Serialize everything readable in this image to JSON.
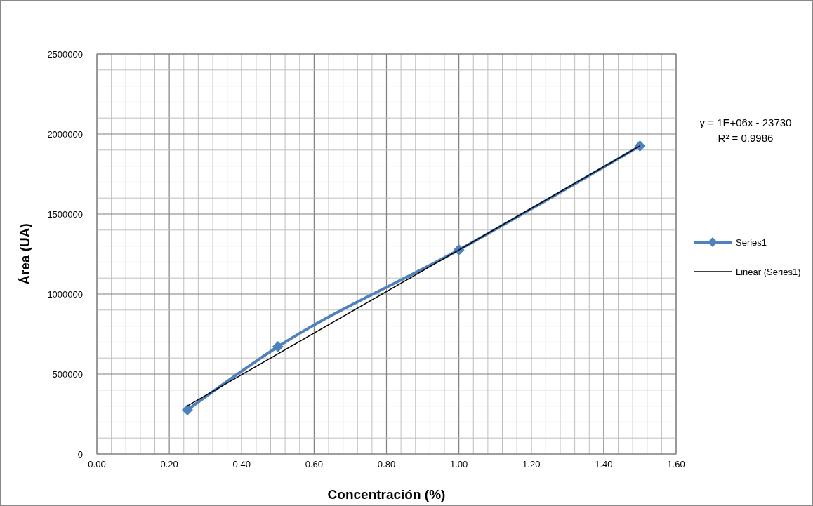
{
  "chart_data": {
    "type": "line",
    "xlabel": "Concentración (%)",
    "ylabel": "Área (UA)",
    "xlim": [
      0,
      1.6
    ],
    "ylim": [
      0,
      2500000
    ],
    "xticks": [
      {
        "value": 0,
        "label": "0.00"
      },
      {
        "value": 0.04,
        "label": null
      },
      {
        "value": 0.08,
        "label": null
      },
      {
        "value": 0.12,
        "label": null
      },
      {
        "value": 0.16,
        "label": null
      },
      {
        "value": 0.2,
        "label": "0.20"
      },
      {
        "value": 0.24,
        "label": null
      },
      {
        "value": 0.28,
        "label": null
      },
      {
        "value": 0.32,
        "label": null
      },
      {
        "value": 0.36,
        "label": null
      },
      {
        "value": 0.4,
        "label": "0.40"
      },
      {
        "value": 0.44,
        "label": null
      },
      {
        "value": 0.48,
        "label": null
      },
      {
        "value": 0.52,
        "label": null
      },
      {
        "value": 0.56,
        "label": null
      },
      {
        "value": 0.6,
        "label": "0.60"
      },
      {
        "value": 0.64,
        "label": null
      },
      {
        "value": 0.68,
        "label": null
      },
      {
        "value": 0.72,
        "label": null
      },
      {
        "value": 0.76,
        "label": null
      },
      {
        "value": 0.8,
        "label": "0.80"
      },
      {
        "value": 0.84,
        "label": null
      },
      {
        "value": 0.88,
        "label": null
      },
      {
        "value": 0.92,
        "label": null
      },
      {
        "value": 0.96,
        "label": null
      },
      {
        "value": 1.0,
        "label": "1.00"
      },
      {
        "value": 1.04,
        "label": null
      },
      {
        "value": 1.08,
        "label": null
      },
      {
        "value": 1.12,
        "label": null
      },
      {
        "value": 1.16,
        "label": null
      },
      {
        "value": 1.2,
        "label": "1.20"
      },
      {
        "value": 1.24,
        "label": null
      },
      {
        "value": 1.28,
        "label": null
      },
      {
        "value": 1.32,
        "label": null
      },
      {
        "value": 1.36,
        "label": null
      },
      {
        "value": 1.4,
        "label": "1.40"
      },
      {
        "value": 1.44,
        "label": null
      },
      {
        "value": 1.48,
        "label": null
      },
      {
        "value": 1.52,
        "label": null
      },
      {
        "value": 1.56,
        "label": null
      },
      {
        "value": 1.6,
        "label": "1.60"
      }
    ],
    "yticks": [
      0,
      {
        "value": 100000,
        "label": null
      },
      {
        "value": 200000,
        "label": null
      },
      {
        "value": 300000,
        "label": null
      },
      {
        "value": 400000,
        "label": null
      },
      500000,
      {
        "value": 600000,
        "label": null
      },
      {
        "value": 700000,
        "label": null
      },
      {
        "value": 800000,
        "label": null
      },
      {
        "value": 900000,
        "label": null
      },
      1000000,
      {
        "value": 1100000,
        "label": null
      },
      {
        "value": 1200000,
        "label": null
      },
      {
        "value": 1300000,
        "label": null
      },
      {
        "value": 1400000,
        "label": null
      },
      1500000,
      {
        "value": 1600000,
        "label": null
      },
      {
        "value": 1700000,
        "label": null
      },
      {
        "value": 1800000,
        "label": null
      },
      {
        "value": 1900000,
        "label": null
      },
      2000000,
      {
        "value": 2100000,
        "label": null
      },
      {
        "value": 2200000,
        "label": null
      },
      {
        "value": 2300000,
        "label": null
      },
      {
        "value": 2400000,
        "label": null
      },
      2500000
    ],
    "grid": true,
    "legend": "right",
    "series": [
      {
        "name": "Series1",
        "color": "#4f81bd",
        "x": [
          0.25,
          0.5,
          1.0,
          1.5
        ],
        "values": [
          276000,
          671000,
          1276000,
          1925000
        ],
        "marker": "diamond",
        "line_style": "solid"
      },
      {
        "name": "Linear (Series1)",
        "color": "#000000",
        "x": [
          0.25,
          1.5
        ],
        "values": [
          301000,
          1926000
        ],
        "marker": "none",
        "line_style": "solid"
      }
    ],
    "annotations": [
      "y = 1E+06x - 23730",
      "R² = 0.9986"
    ]
  }
}
